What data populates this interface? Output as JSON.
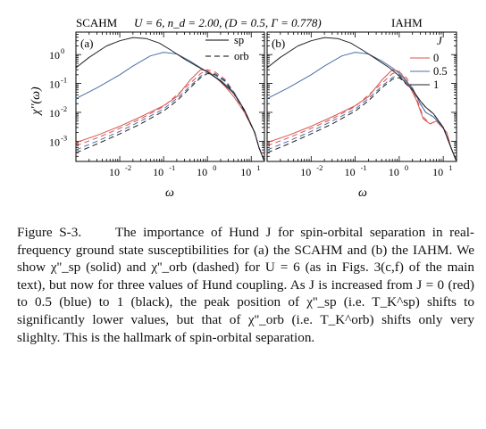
{
  "figure": {
    "header_left": "SCAHM",
    "header_params": "U = 6, n_d = 2.00, (D = 0.5, Γ = 0.778)",
    "header_right": "IAHM",
    "ylabel": "χ''(ω)",
    "xlabel": "ω"
  },
  "chart_data": [
    {
      "type": "line",
      "panel_label": "(a)",
      "xscale": "log",
      "yscale": "log",
      "xlim": [
        0.001,
        20
      ],
      "ylim": [
        0.0002,
        6
      ],
      "xticks": [
        "10^-2",
        "10^-1",
        "10^0",
        "10^1"
      ],
      "yticks": [
        "10^0",
        "10^-1",
        "10^-2",
        "10^-3"
      ],
      "xlabel": "ω",
      "ylabel": "χ''(ω)",
      "legend": [
        {
          "name": "sp",
          "style": "solid"
        },
        {
          "name": "orb",
          "style": "dashed"
        }
      ],
      "legend_position": "top-right",
      "series": [
        {
          "J": "0",
          "channel": "sp",
          "color": "#d9534f",
          "style": "solid",
          "x": [
            0.001,
            0.003,
            0.01,
            0.03,
            0.1,
            0.2,
            0.4,
            0.7,
            1.0,
            1.5,
            2.5,
            4,
            7,
            12,
            15,
            20
          ],
          "y": [
            0.0009,
            0.0016,
            0.0033,
            0.007,
            0.017,
            0.035,
            0.13,
            0.3,
            0.28,
            0.17,
            0.08,
            0.035,
            0.01,
            0.002,
            0.0006,
            0.0002
          ]
        },
        {
          "J": "0",
          "channel": "orb",
          "color": "#d9534f",
          "style": "dashed",
          "x": [
            0.001,
            0.003,
            0.01,
            0.03,
            0.1,
            0.2,
            0.4,
            0.7,
            1.0,
            1.5,
            2.5,
            4,
            7,
            12,
            15,
            20
          ],
          "y": [
            0.0007,
            0.0013,
            0.0028,
            0.006,
            0.016,
            0.04,
            0.1,
            0.22,
            0.3,
            0.25,
            0.14,
            0.05,
            0.012,
            0.002,
            0.0006,
            0.0002
          ]
        },
        {
          "J": "0.5",
          "channel": "sp",
          "color": "#4a6fa8",
          "style": "solid",
          "x": [
            0.001,
            0.003,
            0.01,
            0.02,
            0.05,
            0.1,
            0.2,
            0.4,
            0.7,
            1.0,
            2,
            4,
            7,
            12,
            15,
            20
          ],
          "y": [
            0.03,
            0.07,
            0.2,
            0.4,
            0.9,
            1.2,
            1.05,
            0.6,
            0.35,
            0.25,
            0.13,
            0.05,
            0.012,
            0.002,
            0.0006,
            0.0002
          ]
        },
        {
          "J": "0.5",
          "channel": "orb",
          "color": "#4a6fa8",
          "style": "dashed",
          "x": [
            0.001,
            0.003,
            0.01,
            0.03,
            0.1,
            0.2,
            0.4,
            0.7,
            1.0,
            1.5,
            2.5,
            4,
            7,
            12,
            15,
            20
          ],
          "y": [
            0.0005,
            0.001,
            0.0022,
            0.005,
            0.013,
            0.03,
            0.08,
            0.18,
            0.25,
            0.22,
            0.13,
            0.05,
            0.012,
            0.002,
            0.0006,
            0.0002
          ]
        },
        {
          "J": "1",
          "channel": "sp",
          "color": "#222222",
          "style": "solid",
          "x": [
            0.001,
            0.002,
            0.005,
            0.01,
            0.02,
            0.04,
            0.08,
            0.15,
            0.3,
            0.6,
            1.0,
            2,
            4,
            7,
            12,
            15,
            20
          ],
          "y": [
            0.35,
            0.8,
            2.0,
            3.0,
            3.9,
            3.6,
            2.5,
            1.4,
            0.7,
            0.38,
            0.25,
            0.12,
            0.045,
            0.012,
            0.002,
            0.0006,
            0.0002
          ]
        },
        {
          "J": "1",
          "channel": "orb",
          "color": "#222222",
          "style": "dashed",
          "x": [
            0.001,
            0.003,
            0.01,
            0.03,
            0.1,
            0.2,
            0.4,
            0.7,
            1.0,
            1.5,
            2.5,
            4,
            7,
            12,
            15,
            20
          ],
          "y": [
            0.0004,
            0.0008,
            0.0018,
            0.004,
            0.011,
            0.025,
            0.07,
            0.16,
            0.22,
            0.2,
            0.12,
            0.045,
            0.011,
            0.002,
            0.0006,
            0.0002
          ]
        }
      ]
    },
    {
      "type": "line",
      "panel_label": "(b)",
      "xscale": "log",
      "yscale": "log",
      "xlim": [
        0.001,
        20
      ],
      "ylim": [
        0.0002,
        6
      ],
      "xticks": [
        "10^-2",
        "10^-1",
        "10^0",
        "10^1"
      ],
      "xlabel": "ω",
      "legend_title": "J",
      "legend": [
        {
          "name": "0",
          "color": "#d9534f"
        },
        {
          "name": "0.5",
          "color": "#4a6fa8"
        },
        {
          "name": "1",
          "color": "#222222"
        }
      ],
      "legend_position": "top-right",
      "series": [
        {
          "J": "0",
          "channel": "sp",
          "color": "#d9534f",
          "style": "solid",
          "x": [
            0.001,
            0.003,
            0.01,
            0.03,
            0.1,
            0.2,
            0.4,
            0.7,
            1.0,
            1.5,
            2.5,
            3.5,
            5,
            7,
            12,
            15,
            20
          ],
          "y": [
            0.0009,
            0.0016,
            0.0033,
            0.007,
            0.017,
            0.035,
            0.13,
            0.3,
            0.26,
            0.12,
            0.025,
            0.006,
            0.004,
            0.005,
            0.002,
            0.0006,
            0.0002
          ]
        },
        {
          "J": "0",
          "channel": "orb",
          "color": "#d9534f",
          "style": "dashed",
          "x": [
            0.001,
            0.003,
            0.01,
            0.03,
            0.1,
            0.2,
            0.4,
            0.7,
            1.0,
            1.5,
            2.5,
            3.5,
            5,
            7,
            12,
            15,
            20
          ],
          "y": [
            0.0007,
            0.0013,
            0.0028,
            0.006,
            0.016,
            0.04,
            0.1,
            0.22,
            0.25,
            0.15,
            0.03,
            0.007,
            0.004,
            0.005,
            0.002,
            0.0006,
            0.0002
          ]
        },
        {
          "J": "0.5",
          "channel": "sp",
          "color": "#4a6fa8",
          "style": "solid",
          "x": [
            0.001,
            0.003,
            0.01,
            0.02,
            0.05,
            0.1,
            0.2,
            0.4,
            0.7,
            1.0,
            2,
            3,
            4,
            6,
            10,
            15,
            20
          ],
          "y": [
            0.03,
            0.07,
            0.2,
            0.4,
            0.9,
            1.2,
            1.05,
            0.6,
            0.35,
            0.22,
            0.07,
            0.02,
            0.01,
            0.007,
            0.003,
            0.0006,
            0.0002
          ]
        },
        {
          "J": "0.5",
          "channel": "orb",
          "color": "#4a6fa8",
          "style": "dashed",
          "x": [
            0.001,
            0.003,
            0.01,
            0.03,
            0.1,
            0.2,
            0.4,
            0.7,
            1.0,
            2,
            3,
            4,
            6,
            10,
            15,
            20
          ],
          "y": [
            0.0005,
            0.001,
            0.0022,
            0.005,
            0.013,
            0.03,
            0.08,
            0.16,
            0.2,
            0.07,
            0.02,
            0.01,
            0.007,
            0.003,
            0.0006,
            0.0002
          ]
        },
        {
          "J": "1",
          "channel": "sp",
          "color": "#222222",
          "style": "solid",
          "x": [
            0.001,
            0.002,
            0.005,
            0.01,
            0.02,
            0.04,
            0.08,
            0.15,
            0.3,
            0.6,
            1.0,
            2,
            3,
            4,
            6,
            10,
            15,
            20
          ],
          "y": [
            0.35,
            0.8,
            2.0,
            3.0,
            3.9,
            3.6,
            2.5,
            1.4,
            0.7,
            0.35,
            0.18,
            0.06,
            0.025,
            0.015,
            0.009,
            0.003,
            0.0006,
            0.0002
          ]
        },
        {
          "J": "1",
          "channel": "orb",
          "color": "#222222",
          "style": "dashed",
          "x": [
            0.001,
            0.003,
            0.01,
            0.03,
            0.1,
            0.2,
            0.4,
            0.7,
            1.0,
            2,
            3,
            4,
            6,
            10,
            15,
            20
          ],
          "y": [
            0.0004,
            0.0008,
            0.0018,
            0.004,
            0.011,
            0.025,
            0.07,
            0.14,
            0.16,
            0.06,
            0.025,
            0.015,
            0.009,
            0.003,
            0.0006,
            0.0002
          ]
        }
      ]
    }
  ],
  "caption": {
    "label": "Figure S-3.",
    "text": "The importance of Hund J for spin-orbital separation in real-frequency ground state susceptibilities for (a) the SCAHM and (b) the IAHM. We show χ''_sp (solid) and χ''_orb (dashed) for U = 6 (as in Figs. 3(c,f) of the main text), but now for three values of Hund coupling. As J is increased from J = 0 (red) to 0.5 (blue) to 1 (black), the peak position of χ''_sp (i.e. T_K^sp) shifts to significantly lower values, but that of χ''_orb (i.e. T_K^orb) shifts only very slighlty. This is the hallmark of spin-orbital separation."
  }
}
